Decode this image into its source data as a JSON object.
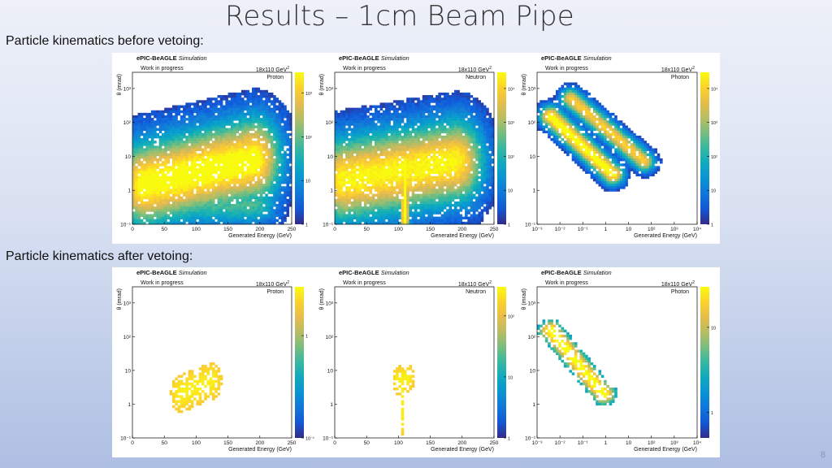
{
  "slide": {
    "title": "Results – 1cm Beam Pipe",
    "section_before": "Particle kinematics before vetoing:",
    "section_after": "Particle kinematics after vetoing:",
    "page_number": "8"
  },
  "plot_common": {
    "experiment": "ePIC-BeAGLE",
    "experiment_suffix": "Simulation",
    "status": "Work in progress",
    "beam": "18x110 GeV",
    "beam_sup": "2",
    "xlabel": "Generated Energy (GeV)",
    "ylabel": "θ (mrad)"
  },
  "chart_data": [
    {
      "id": "before-proton",
      "type": "heatmap",
      "particle": "Proton",
      "xscale": "linear",
      "xlim": [
        0,
        250
      ],
      "xticks": [
        "0",
        "50",
        "100",
        "150",
        "200",
        "250"
      ],
      "yscale": "log",
      "ylim": [
        0.1,
        3000
      ],
      "yticks": [
        "10⁻¹",
        "1",
        "10",
        "10²",
        "10³"
      ],
      "colorscale": "log",
      "zlim": [
        1,
        3000
      ],
      "zticks": [
        "1",
        "10",
        "10²",
        "10³"
      ],
      "blobs": [
        {
          "x": [
            20,
            190
          ],
          "y": [
            1.5,
            8
          ],
          "w": 45,
          "h": 7,
          "peak": 1,
          "kind": "band"
        },
        {
          "x": [
            95,
            100
          ],
          "y": [
            3,
            3
          ],
          "w": 32,
          "h": 1.2,
          "peak": 1,
          "kind": "core"
        },
        {
          "x": [
            30,
            190
          ],
          "y": [
            0.4,
            0.4
          ],
          "w": 40,
          "h": 1.0,
          "peak": 0.5,
          "kind": "row"
        }
      ]
    },
    {
      "id": "before-neutron",
      "type": "heatmap",
      "particle": "Neutron",
      "xscale": "linear",
      "xlim": [
        0,
        250
      ],
      "xticks": [
        "0",
        "50",
        "100",
        "150",
        "200",
        "250"
      ],
      "yscale": "log",
      "ylim": [
        0.1,
        3000
      ],
      "yticks": [
        "10⁻¹",
        "1",
        "10",
        "10²",
        "10³"
      ],
      "colorscale": "log",
      "zlim": [
        1,
        30000
      ],
      "zticks": [
        "1",
        "10",
        "10²",
        "10³",
        "10⁴"
      ],
      "blobs": [
        {
          "x": [
            15,
            190
          ],
          "y": [
            2,
            7
          ],
          "w": 45,
          "h": 7,
          "peak": 0.95,
          "kind": "band"
        },
        {
          "x": [
            110,
            110
          ],
          "y": [
            0.15,
            6
          ],
          "w": 8,
          "h": 1.0,
          "peak": 1,
          "kind": "column"
        }
      ]
    },
    {
      "id": "before-photon",
      "type": "heatmap",
      "particle": "Photon",
      "xscale": "log",
      "xlim": [
        0.001,
        10000
      ],
      "xticks": [
        "10⁻³",
        "10⁻²",
        "10⁻¹",
        "1",
        "10",
        "10²",
        "10³",
        "10⁴"
      ],
      "yscale": "log",
      "ylim": [
        0.1,
        3000
      ],
      "yticks": [
        "10⁻¹",
        "1",
        "10",
        "10²",
        "10³"
      ],
      "colorscale": "log",
      "zlim": [
        1,
        30000
      ],
      "zticks": [
        "1",
        "10",
        "10²",
        "10³",
        "10⁴"
      ],
      "blobs": [
        {
          "x": [
            0.004,
            2
          ],
          "y": [
            150,
            3
          ],
          "w": 0.5,
          "h": 0.45,
          "peak": 1,
          "kind": "diag"
        },
        {
          "x": [
            0.03,
            50
          ],
          "y": [
            500,
            7
          ],
          "w": 0.45,
          "h": 0.4,
          "peak": 0.85,
          "kind": "diag"
        }
      ]
    },
    {
      "id": "after-proton",
      "type": "heatmap",
      "particle": "Proton",
      "xscale": "linear",
      "xlim": [
        0,
        250
      ],
      "xticks": [
        "0",
        "50",
        "100",
        "150",
        "200",
        "250"
      ],
      "yscale": "log",
      "ylim": [
        0.1,
        3000
      ],
      "yticks": [
        "10⁻¹",
        "1",
        "10",
        "10²",
        "10³"
      ],
      "colorscale": "log",
      "zlim": [
        0.1,
        3
      ],
      "zticks": [
        "10⁻¹",
        "1"
      ],
      "blobs": [
        {
          "x": [
            75,
            125
          ],
          "y": [
            2,
            5
          ],
          "w": 15,
          "h": 1.5,
          "peak": 1,
          "kind": "small"
        }
      ]
    },
    {
      "id": "after-neutron",
      "type": "heatmap",
      "particle": "Neutron",
      "xscale": "linear",
      "xlim": [
        0,
        250
      ],
      "xticks": [
        "0",
        "50",
        "100",
        "150",
        "200",
        "250"
      ],
      "yscale": "log",
      "ylim": [
        0.1,
        3000
      ],
      "yticks": [
        "10⁻¹",
        "1",
        "10",
        "10²",
        "10³"
      ],
      "colorscale": "log",
      "zlim": [
        1,
        300
      ],
      "zticks": [
        "1",
        "10",
        "10²"
      ],
      "blobs": [
        {
          "x": [
            100,
            115
          ],
          "y": [
            5,
            6
          ],
          "w": 10,
          "h": 0.8,
          "peak": 1,
          "kind": "small"
        },
        {
          "x": [
            107,
            107
          ],
          "y": [
            0.3,
            3
          ],
          "w": 3,
          "h": 0.8,
          "peak": 1,
          "kind": "column"
        }
      ]
    },
    {
      "id": "after-photon",
      "type": "heatmap",
      "particle": "Photon",
      "xscale": "log",
      "xlim": [
        0.001,
        10000
      ],
      "xticks": [
        "10⁻³",
        "10⁻²",
        "10⁻¹",
        "1",
        "10",
        "10²",
        "10³",
        "10⁴"
      ],
      "yscale": "log",
      "ylim": [
        0.1,
        3000
      ],
      "yticks": [
        "10⁻¹",
        "1",
        "10",
        "10²",
        "10³"
      ],
      "colorscale": "log",
      "zlim": [
        0.5,
        30
      ],
      "zticks": [
        "1",
        "10"
      ],
      "blobs": [
        {
          "x": [
            0.004,
            0.8
          ],
          "y": [
            150,
            2
          ],
          "w": 0.6,
          "h": 0.55,
          "peak": 1,
          "kind": "diag"
        }
      ]
    }
  ]
}
